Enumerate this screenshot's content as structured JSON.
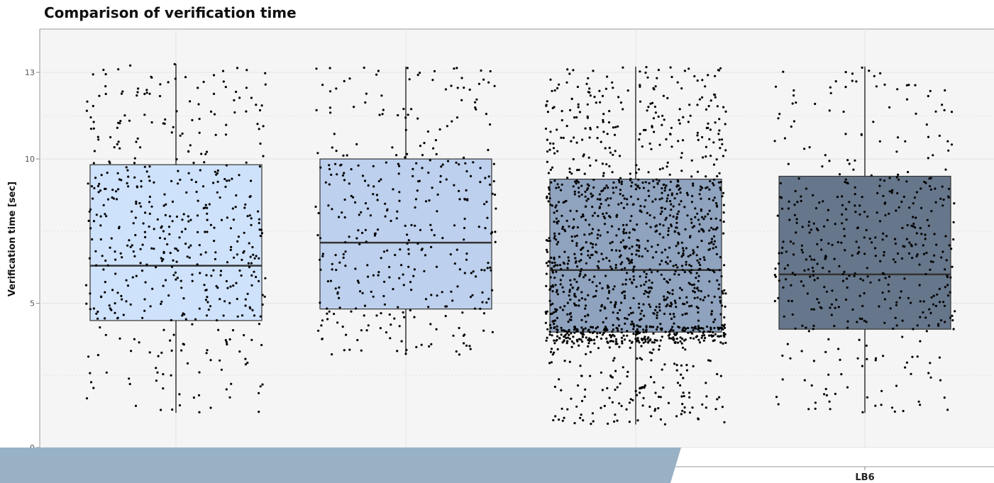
{
  "chart_data": {
    "type": "boxplot",
    "title": "Comparison of verification time",
    "xlabel": "",
    "ylabel": "Verification time [sec]",
    "yticks": [
      0,
      5,
      10,
      13
    ],
    "ylim": [
      0,
      14.5
    ],
    "grid": true,
    "categories": [
      "",
      "",
      "",
      "LB6"
    ],
    "boxes": [
      {
        "whisker_low": 1.2,
        "q1": 4.4,
        "median": 6.3,
        "q3": 9.8,
        "whisker_high": 13.3,
        "fill": "#cfe2fb",
        "approx_points": 520
      },
      {
        "whisker_low": 3.2,
        "q1": 4.8,
        "median": 7.1,
        "q3": 10.0,
        "whisker_high": 13.2,
        "fill": "#bdd0ed",
        "approx_points": 380
      },
      {
        "whisker_low": 0.8,
        "q1": 4.0,
        "median": 6.15,
        "q3": 9.3,
        "whisker_high": 13.2,
        "fill": "#8fa3bf",
        "approx_points": 1500
      },
      {
        "whisker_low": 1.2,
        "q1": 4.1,
        "median": 6.0,
        "q3": 9.4,
        "whisker_high": 13.2,
        "fill": "#66768b",
        "approx_points": 480
      }
    ]
  },
  "colors": {
    "panel": "#f5f5f5",
    "grid": "#e3e3e3",
    "box_border": "#333333",
    "points": "#000000",
    "overlay_band": "#98b1c5"
  }
}
